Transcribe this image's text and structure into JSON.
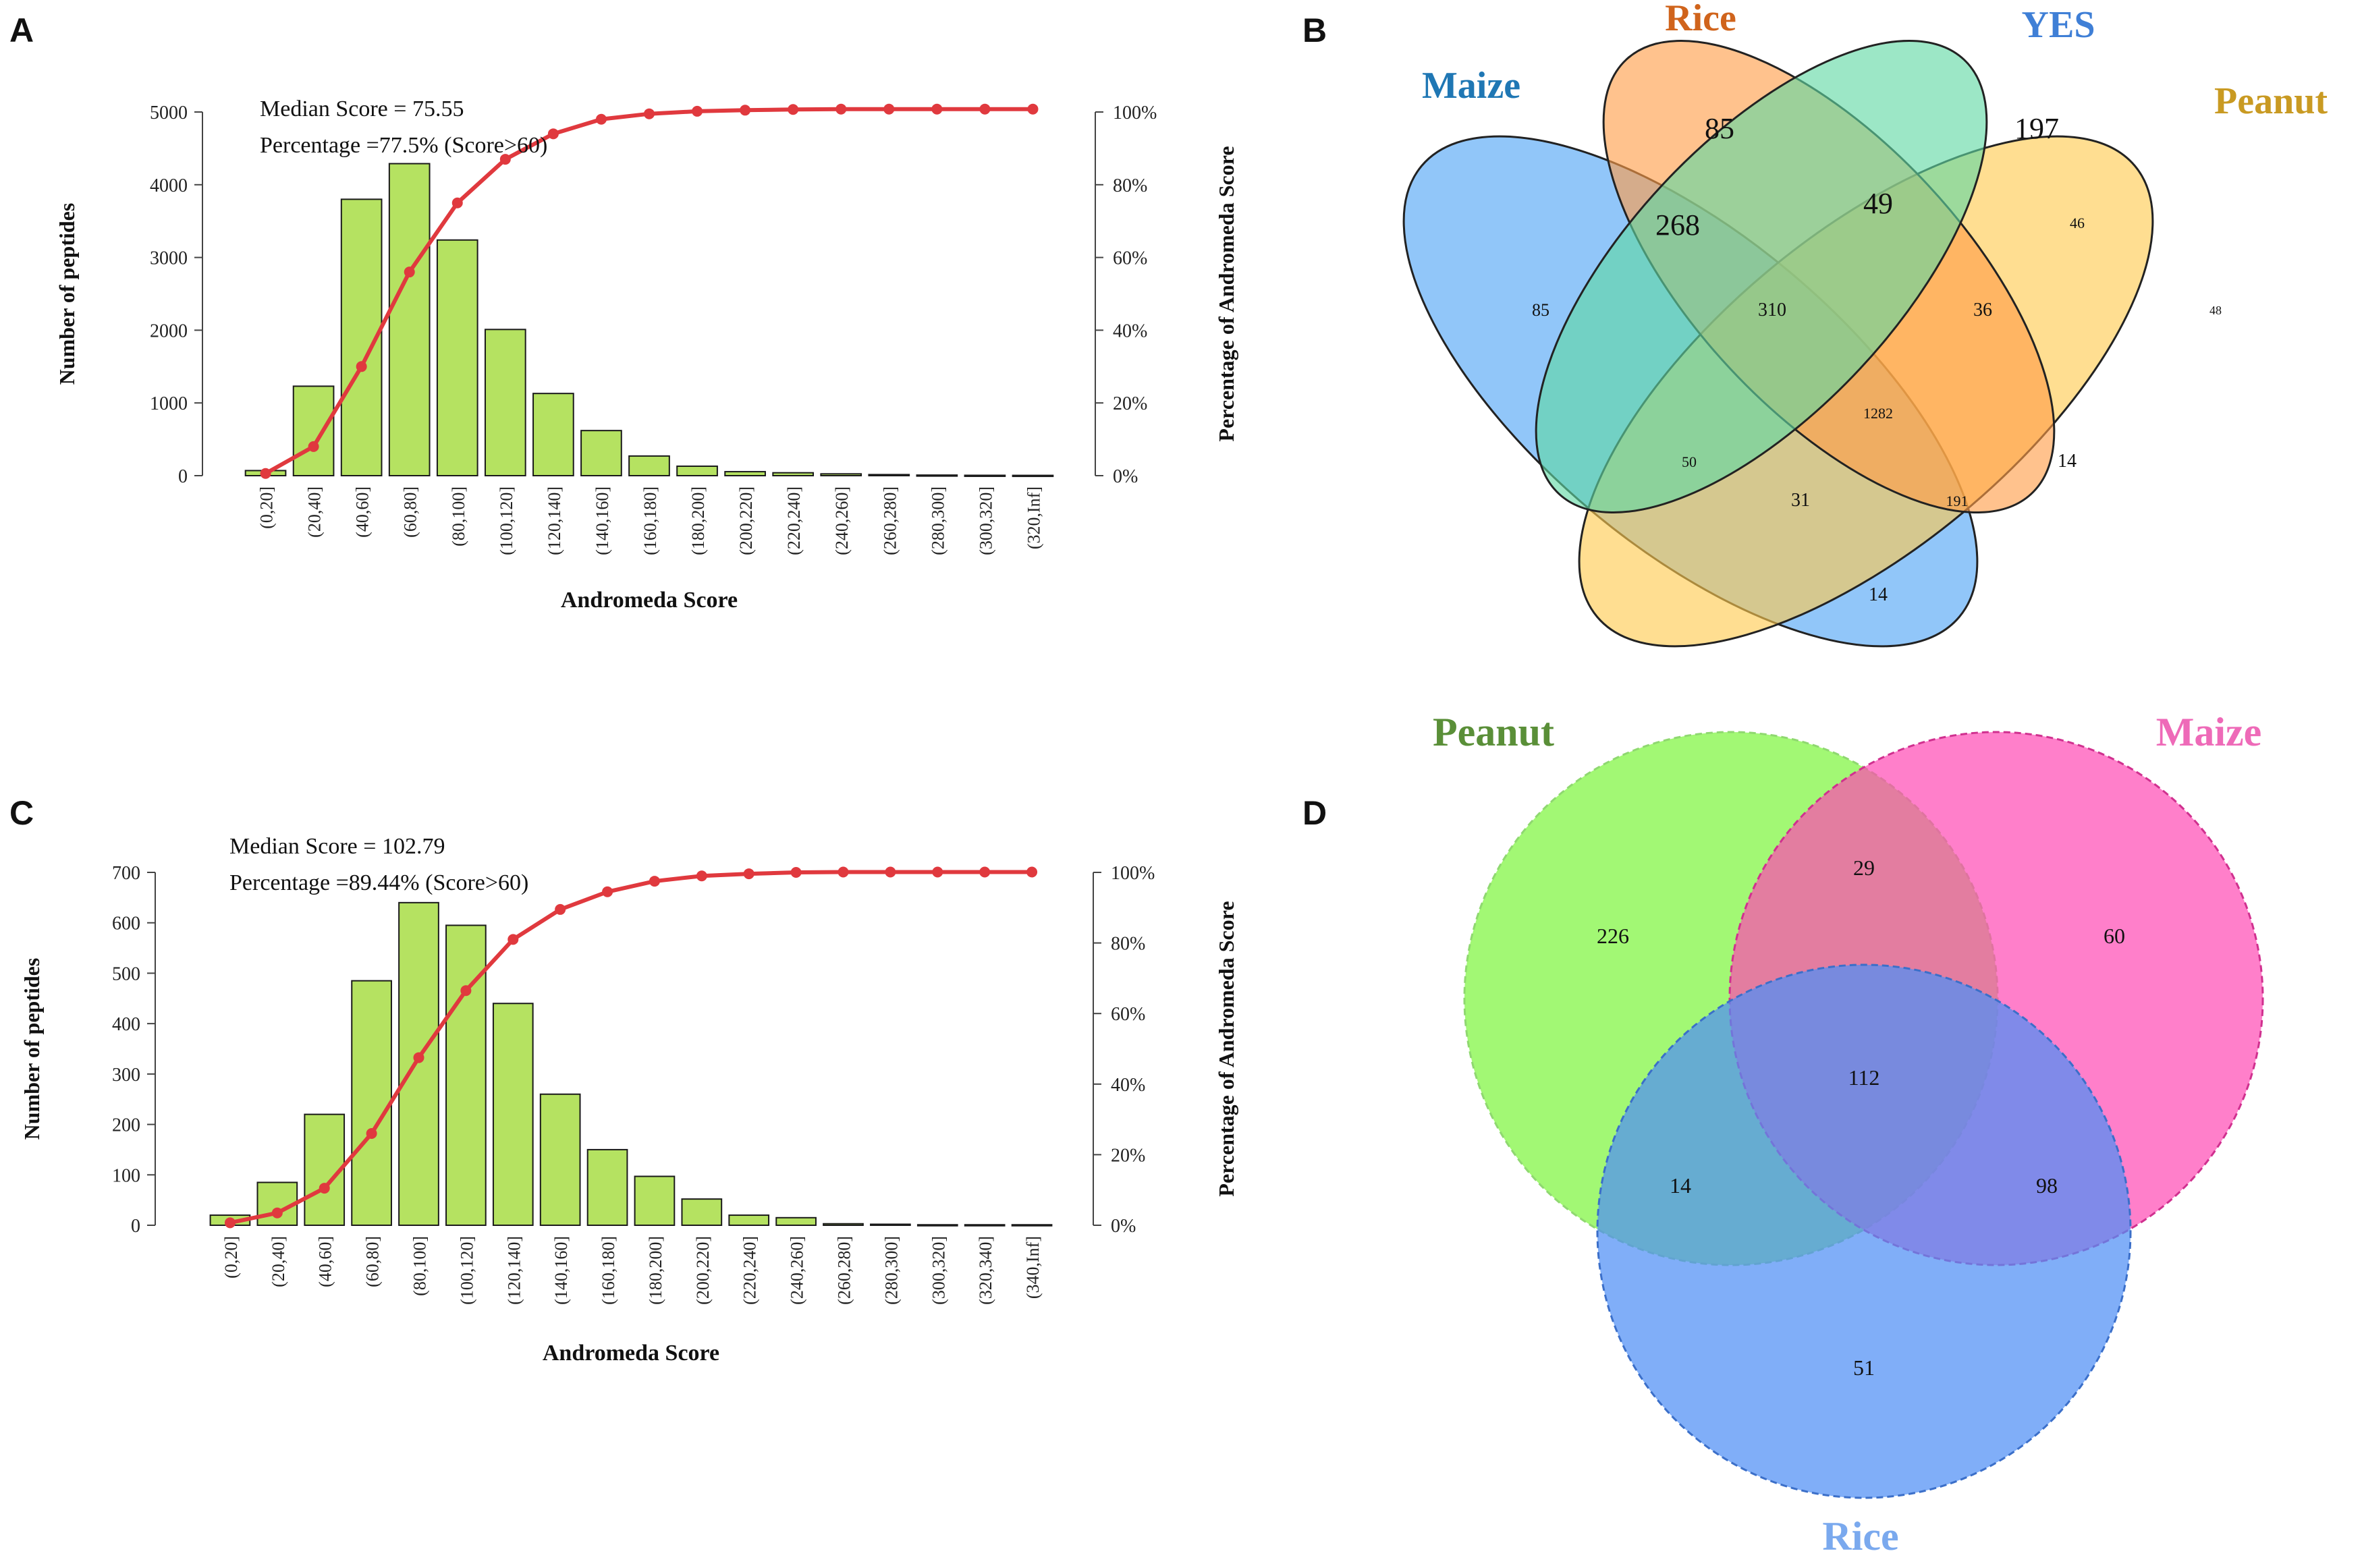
{
  "panels": {
    "A": "A",
    "B": "B",
    "C": "C",
    "D": "D"
  },
  "colors": {
    "bar": "#b5e261",
    "curve": "#e0393e",
    "venn4": {
      "Maize": "#4da3f5",
      "Rice": "#ff9d47",
      "YES": "#5fd9a3",
      "Peanut": "#ffc94d"
    },
    "venn4_labels": {
      "Maize": "#1f77b4",
      "Rice": "#d0641c",
      "YES": "#3f7fd6",
      "Peanut": "#c99a22"
    },
    "venn3": {
      "Peanut": "#7ef53f",
      "Maize": "#ff48b3",
      "Rice": "#4f8ff5"
    },
    "venn3_labels": {
      "Peanut": "#5a8f38",
      "Maize": "#ee6ab8",
      "Rice": "#7aa9ee"
    }
  },
  "chart_data": [
    {
      "type": "bar",
      "panel": "A",
      "xlabel": "Andromeda Score",
      "ylabel": "Number of peptides",
      "ylabel_right": "Percentage of Andromeda Score",
      "ylim": [
        0,
        5000
      ],
      "yticks": [
        "0",
        "1000",
        "2000",
        "3000",
        "4000",
        "5000"
      ],
      "yticks_right": [
        "0%",
        "20%",
        "40%",
        "60%",
        "80%",
        "100%"
      ],
      "annotation_lines": [
        "Median Score = 75.55",
        "Percentage =77.5% (Score>60)"
      ],
      "categories": [
        "(0,20]",
        "(20,40]",
        "(40,60]",
        "(60,80]",
        "(80,100]",
        "(100,120]",
        "(120,140]",
        "(140,160]",
        "(160,180]",
        "(180,200]",
        "(200,220]",
        "(220,240]",
        "(240,260]",
        "(260,280]",
        "(280,300]",
        "(300,320]",
        "(320,Inf]"
      ],
      "values": [
        70,
        1230,
        3800,
        4290,
        3240,
        2010,
        1130,
        620,
        270,
        130,
        55,
        40,
        25,
        15,
        8,
        5,
        4
      ],
      "cumulative_percent": [
        0.6,
        8,
        30,
        56,
        75,
        87,
        94,
        98,
        99.5,
        100.2,
        100.5,
        100.7,
        100.8,
        100.8,
        100.8,
        100.8,
        100.8
      ]
    },
    {
      "type": "bar",
      "panel": "C",
      "xlabel": "Andromeda Score",
      "ylabel": "Number of peptides",
      "ylabel_right": "Percentage of Andromeda Score",
      "ylim": [
        0,
        700
      ],
      "yticks": [
        "0",
        "100",
        "200",
        "300",
        "400",
        "500",
        "600",
        "700"
      ],
      "yticks_right": [
        "0%",
        "20%",
        "40%",
        "60%",
        "80%",
        "100%"
      ],
      "annotation_lines": [
        "Median Score = 102.79",
        "Percentage =89.44% (Score>60)"
      ],
      "categories": [
        "(0,20]",
        "(20,40]",
        "(40,60]",
        "(60,80]",
        "(80,100]",
        "(100,120]",
        "(120,140]",
        "(140,160]",
        "(160,180]",
        "(180,200]",
        "(200,220]",
        "(220,240]",
        "(240,260]",
        "(260,280]",
        "(280,300]",
        "(300,320]",
        "(320,340]",
        "(340,Inf]"
      ],
      "values": [
        20,
        85,
        220,
        485,
        640,
        595,
        440,
        260,
        150,
        97,
        52,
        20,
        15,
        3,
        2,
        1,
        1,
        1
      ],
      "cumulative_percent": [
        0.7,
        3.5,
        10.5,
        26,
        47.5,
        66.5,
        81,
        89.5,
        94.5,
        97.5,
        99,
        99.6,
        100,
        100.1,
        100.1,
        100.1,
        100.1,
        100.1
      ]
    },
    {
      "type": "venn",
      "panel": "B",
      "sets": [
        "Maize",
        "Rice",
        "YES",
        "Peanut"
      ],
      "regions": [
        {
          "sets": [
            "Maize"
          ],
          "value": "85"
        },
        {
          "sets": [
            "Rice"
          ],
          "value": "85"
        },
        {
          "sets": [
            "YES"
          ],
          "value": "197"
        },
        {
          "sets": [
            "Peanut"
          ],
          "value": "48"
        },
        {
          "sets": [
            "Maize",
            "Rice"
          ],
          "value": "268"
        },
        {
          "sets": [
            "Rice",
            "YES"
          ],
          "value": "49"
        },
        {
          "sets": [
            "YES",
            "Peanut"
          ],
          "value": "46"
        },
        {
          "sets": [
            "Maize",
            "Rice",
            "YES"
          ],
          "value": "310"
        },
        {
          "sets": [
            "Rice",
            "YES",
            "Peanut"
          ],
          "value": "36"
        },
        {
          "sets": [
            "Maize",
            "Rice",
            "YES",
            "Peanut"
          ],
          "value": "1282"
        },
        {
          "sets": [
            "Maize",
            "YES"
          ],
          "value": "50"
        },
        {
          "sets": [
            "Rice",
            "Peanut"
          ],
          "value": "14"
        },
        {
          "sets": [
            "Maize",
            "YES",
            "Peanut"
          ],
          "value": "31"
        },
        {
          "sets": [
            "Maize",
            "Rice",
            "Peanut"
          ],
          "value": "191"
        },
        {
          "sets": [
            "Maize",
            "Peanut"
          ],
          "value": "14"
        }
      ]
    },
    {
      "type": "venn",
      "panel": "D",
      "sets": [
        "Peanut",
        "Maize",
        "Rice"
      ],
      "regions": [
        {
          "sets": [
            "Peanut"
          ],
          "value": "226"
        },
        {
          "sets": [
            "Maize"
          ],
          "value": "60"
        },
        {
          "sets": [
            "Rice"
          ],
          "value": "51"
        },
        {
          "sets": [
            "Peanut",
            "Maize"
          ],
          "value": "29"
        },
        {
          "sets": [
            "Peanut",
            "Rice"
          ],
          "value": "14"
        },
        {
          "sets": [
            "Maize",
            "Rice"
          ],
          "value": "98"
        },
        {
          "sets": [
            "Peanut",
            "Maize",
            "Rice"
          ],
          "value": "112"
        }
      ]
    }
  ]
}
